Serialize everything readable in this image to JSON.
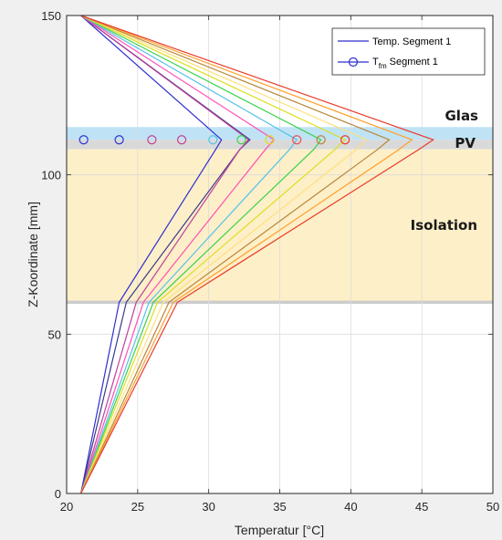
{
  "chart_data": {
    "type": "line",
    "xlabel": "Temperatur [°C]",
    "ylabel": "Z-Koordinate [mm]",
    "xlim": [
      20,
      50
    ],
    "ylim": [
      0,
      150
    ],
    "xticks": [
      "20",
      "25",
      "30",
      "35",
      "40",
      "45",
      "50"
    ],
    "yticks": [
      "0",
      "50",
      "100",
      "150"
    ],
    "grid": true,
    "legend": {
      "placement": "top-right",
      "entries": [
        {
          "label": "Temp. Segment 1",
          "marker": "line",
          "color": "#2f2fd0"
        },
        {
          "label_main": "T",
          "label_sub": "fm",
          "label_rest": " Segment 1",
          "marker": "circle-line",
          "color": "#2f2fd0"
        }
      ]
    },
    "regions": [
      {
        "label": "Glas",
        "y_range": [
          111,
          115
        ],
        "color": "#bfe3f5"
      },
      {
        "label": "PV",
        "y_range": [
          108,
          111
        ],
        "color": "#d9d9d9"
      },
      {
        "label": "Isolation",
        "y_range": [
          60,
          108
        ],
        "color": "#fdefc8"
      },
      {
        "label": "",
        "y_range": [
          59.5,
          60.5
        ],
        "color": "#cccccc"
      }
    ],
    "series": [
      {
        "color": "#2f2fd0",
        "x": [
          21,
          23.7,
          30.5,
          30.9,
          21
        ],
        "y": [
          0,
          60,
          108,
          111,
          150
        ]
      },
      {
        "color": "#3a3a8a",
        "x": [
          21,
          24.2,
          32.2,
          32.9,
          21
        ],
        "y": [
          0,
          60,
          108,
          111,
          150
        ]
      },
      {
        "color": "#c0409a",
        "x": [
          21,
          24.9,
          32.2,
          32.8,
          21
        ],
        "y": [
          0,
          60,
          108,
          111,
          150
        ]
      },
      {
        "color": "#ff4fb5",
        "x": [
          21,
          25.4,
          34.0,
          34.6,
          21
        ],
        "y": [
          0,
          60,
          108,
          111,
          150
        ]
      },
      {
        "color": "#56c1e8",
        "x": [
          21,
          25.8,
          35.7,
          36.2,
          21
        ],
        "y": [
          0,
          60,
          108,
          111,
          150
        ]
      },
      {
        "color": "#3bd24a",
        "x": [
          21,
          26.1,
          37.4,
          37.9,
          21
        ],
        "y": [
          0,
          60,
          108,
          111,
          150
        ]
      },
      {
        "color": "#dede20",
        "x": [
          21,
          26.4,
          38.9,
          39.6,
          21
        ],
        "y": [
          0,
          60,
          108,
          111,
          150
        ]
      },
      {
        "color": "#ffe07a",
        "x": [
          21,
          26.8,
          40.4,
          41.1,
          21
        ],
        "y": [
          0,
          60,
          108,
          111,
          150
        ]
      },
      {
        "color": "#b8863a",
        "x": [
          21,
          27.2,
          41.9,
          42.7,
          21
        ],
        "y": [
          0,
          60,
          108,
          111,
          150
        ]
      },
      {
        "color": "#ff9f2a",
        "x": [
          21,
          27.5,
          43.4,
          44.3,
          21
        ],
        "y": [
          0,
          60,
          108,
          111,
          150
        ]
      },
      {
        "color": "#e83a2a",
        "x": [
          21,
          27.8,
          44.8,
          45.8,
          21
        ],
        "y": [
          0,
          60,
          108,
          111,
          150
        ]
      }
    ],
    "tfm_points": [
      {
        "x": 21.2,
        "y": 111,
        "color": "#2f2fd0"
      },
      {
        "x": 23.7,
        "y": 111,
        "color": "#2f2fd0"
      },
      {
        "x": 26.0,
        "y": 111,
        "color": "#c0409a"
      },
      {
        "x": 28.1,
        "y": 111,
        "color": "#c0409a"
      },
      {
        "x": 30.3,
        "y": 111,
        "color": "#56c1e8"
      },
      {
        "x": 32.3,
        "y": 111,
        "color": "#3bd24a"
      },
      {
        "x": 34.3,
        "y": 111,
        "color": "#dede20"
      },
      {
        "x": 36.2,
        "y": 111,
        "color": "#e85050"
      },
      {
        "x": 37.9,
        "y": 111,
        "color": "#b8863a"
      },
      {
        "x": 39.6,
        "y": 111,
        "color": "#e83a2a"
      }
    ]
  }
}
